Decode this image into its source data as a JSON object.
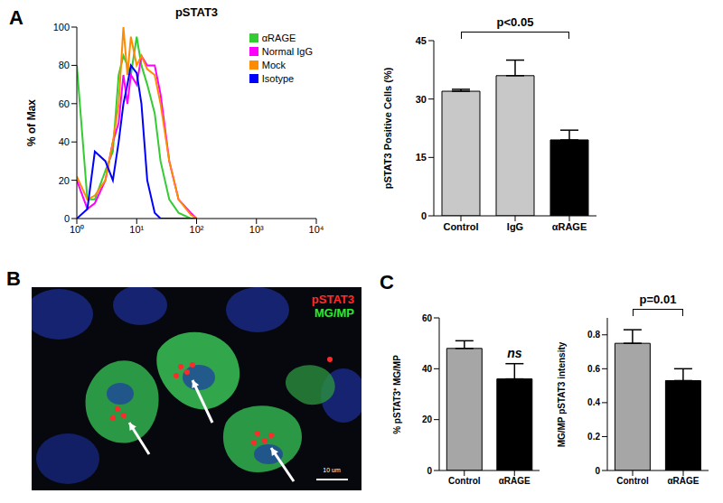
{
  "chart_data": [
    {
      "type": "line",
      "panel_label": "A",
      "title": "pSTAT3",
      "y_label": "% of Max",
      "x": [
        1,
        1.5,
        2,
        3,
        4,
        5,
        6,
        7,
        8,
        10,
        12,
        15,
        20,
        25,
        35,
        50,
        80,
        100
      ],
      "series": [
        {
          "name": "αRAGE",
          "color": "#33cc33",
          "values": [
            80,
            10,
            10,
            25,
            35,
            75,
            85,
            80,
            75,
            95,
            80,
            70,
            55,
            30,
            10,
            3,
            0,
            0
          ]
        },
        {
          "name": "Normal IgG",
          "color": "#ff00ff",
          "values": [
            20,
            5,
            8,
            20,
            40,
            50,
            75,
            60,
            75,
            70,
            85,
            80,
            80,
            65,
            30,
            10,
            3,
            0
          ]
        },
        {
          "name": "Mock",
          "color": "#ff8c00",
          "values": [
            22,
            10,
            12,
            20,
            40,
            60,
            100,
            75,
            95,
            80,
            85,
            78,
            75,
            60,
            30,
            10,
            2,
            0
          ]
        },
        {
          "name": "Isotype",
          "color": "#0000ff",
          "values": [
            0,
            5,
            35,
            30,
            20,
            40,
            60,
            70,
            80,
            76,
            60,
            20,
            3,
            0,
            0,
            0,
            0,
            0
          ]
        }
      ],
      "log": "x",
      "xlim": [
        1,
        10000
      ],
      "xticks": [
        {
          "value": 1,
          "label": "10⁰"
        },
        {
          "value": 10,
          "label": "10¹"
        },
        {
          "value": 100,
          "label": "10²"
        },
        {
          "value": 1000,
          "label": "10³"
        },
        {
          "value": 10000,
          "label": "10⁴"
        }
      ],
      "ylim": [
        0,
        100
      ],
      "yticks": [
        0,
        20,
        40,
        60,
        80,
        100
      ],
      "legend": "upper right"
    },
    {
      "type": "bar",
      "y_label": "pSTAT3 Positive Cells (%)",
      "categories": [
        "Control",
        "IgG",
        "αRAGE"
      ],
      "values": [
        32,
        36,
        19.5
      ],
      "errors": [
        0.5,
        4,
        2.5
      ],
      "colors": [
        "#c8c8c8",
        "#c8c8c8",
        "#000000"
      ],
      "ylim": [
        0,
        45
      ],
      "yticks": [
        0,
        15,
        30,
        45
      ],
      "annotations": [
        {
          "text": "p<0.05",
          "from": "Control",
          "to": "αRAGE"
        }
      ]
    },
    {
      "type": "image",
      "panel_label": "B",
      "labels": [
        {
          "text": "pSTAT3",
          "color": "#ff2a2a"
        },
        {
          "text": "MG/MP",
          "color": "#2ee82e"
        }
      ],
      "scale_bar": "10 um"
    },
    {
      "type": "bar",
      "panel_label": "C",
      "y_label": "% pSTAT3⁺ MG/MP",
      "categories": [
        "Control",
        "αRAGE"
      ],
      "values": [
        48,
        36
      ],
      "errors": [
        3,
        6
      ],
      "colors": [
        "#a6a6a6",
        "#000000"
      ],
      "ylim": [
        0,
        60
      ],
      "yticks": [
        0,
        20,
        40,
        60
      ],
      "annotations": [
        {
          "text": "ns",
          "category": "αRAGE"
        }
      ]
    },
    {
      "type": "bar",
      "y_label": "MG/MP pSTAT3 intensity",
      "categories": [
        "Control",
        "αRAGE"
      ],
      "values": [
        0.75,
        0.53
      ],
      "errors": [
        0.08,
        0.07
      ],
      "colors": [
        "#a6a6a6",
        "#000000"
      ],
      "ylim": [
        0,
        0.9
      ],
      "yticks": [
        0,
        0.2,
        0.4,
        0.6,
        0.8
      ],
      "annotations": [
        {
          "text": "p=0.01",
          "from": "Control",
          "to": "αRAGE"
        }
      ]
    }
  ]
}
